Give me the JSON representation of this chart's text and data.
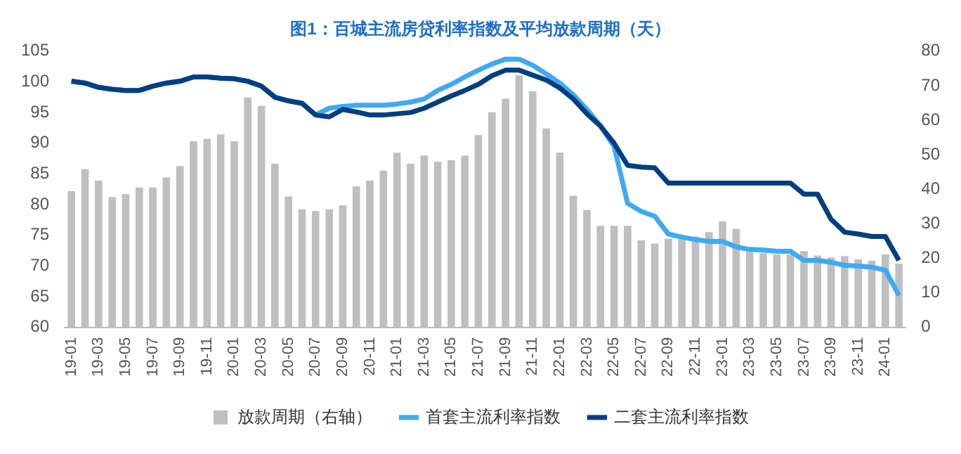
{
  "chart_data": {
    "type": "line",
    "title": "图1：百城主流房贷利率指数及平均放款周期（天）",
    "categories": [
      "19-01",
      null,
      "19-03",
      null,
      "19-05",
      null,
      "19-07",
      null,
      "19-09",
      null,
      "19-11",
      null,
      "20-01",
      null,
      "20-03",
      null,
      "20-05",
      null,
      "20-07",
      null,
      "20-09",
      null,
      "20-11",
      null,
      "21-01",
      null,
      "21-03",
      null,
      "21-05",
      null,
      "21-07",
      null,
      "21-09",
      null,
      "21-11",
      null,
      "22-01",
      null,
      "22-03",
      null,
      "22-05",
      null,
      "22-07",
      null,
      "22-09",
      null,
      "22-11",
      null,
      "23-01",
      null,
      "23-03",
      null,
      "23-05",
      null,
      "23-07",
      null,
      "23-09",
      null,
      "23-11",
      null,
      "24-01",
      null
    ],
    "series": [
      {
        "name": "放款周期（右轴）",
        "type": "bar",
        "axis": "y2",
        "color": "#bfbfbf",
        "values": [
          39.5,
          45.8,
          42.5,
          37.7,
          38.6,
          40.5,
          40.5,
          43.4,
          46.7,
          53.9,
          54.6,
          55.9,
          53.9,
          66.6,
          64.2,
          47.4,
          37.9,
          34.2,
          33.7,
          34.2,
          35.3,
          40.8,
          42.5,
          45.4,
          50.6,
          47.4,
          49.7,
          48.0,
          48.4,
          49.7,
          55.7,
          62.3,
          66.2,
          73.0,
          68.4,
          57.6,
          50.6,
          38.1,
          34.0,
          29.4,
          29.4,
          29.4,
          25.2,
          24.3,
          25.7,
          25.6,
          26.3,
          27.6,
          30.7,
          28.5,
          22.1,
          21.5,
          21.1,
          21.1,
          22.1,
          20.8,
          20.2,
          20.6,
          19.7,
          19.3,
          21.1,
          18.4
        ]
      },
      {
        "name": "首套主流利率指数",
        "color": "#3fa9f5",
        "values": [
          100.1,
          99.8,
          99.1,
          98.8,
          98.6,
          98.6,
          99.3,
          99.8,
          100.1,
          100.8,
          100.8,
          100.6,
          100.5,
          100.1,
          99.3,
          97.5,
          96.9,
          96.5,
          94.6,
          95.7,
          96.0,
          96.2,
          96.2,
          96.2,
          96.4,
          96.7,
          97.2,
          98.6,
          99.6,
          100.8,
          101.9,
          102.9,
          103.7,
          103.7,
          102.7,
          101.3,
          99.8,
          97.9,
          95.5,
          92.8,
          89.5,
          80.2,
          78.9,
          78.1,
          75.2,
          74.7,
          74.3,
          74.0,
          74.0,
          73.1,
          72.7,
          72.6,
          72.4,
          72.4,
          70.9,
          70.9,
          70.6,
          70.1,
          70.0,
          69.8,
          69.3,
          65.2
        ]
      },
      {
        "name": "二套主流利率指数",
        "color": "#003f7f",
        "values": [
          100.1,
          99.8,
          99.1,
          98.8,
          98.6,
          98.6,
          99.3,
          99.8,
          100.1,
          100.8,
          100.8,
          100.6,
          100.5,
          100.1,
          99.3,
          97.5,
          96.9,
          96.5,
          94.6,
          94.3,
          95.5,
          95.1,
          94.6,
          94.6,
          94.8,
          95.0,
          95.7,
          96.7,
          97.7,
          98.6,
          99.6,
          101.0,
          101.9,
          101.9,
          101.1,
          100.3,
          99.0,
          97.2,
          94.8,
          92.8,
          90.0,
          86.4,
          86.1,
          86.0,
          83.5,
          83.5,
          83.5,
          83.5,
          83.5,
          83.5,
          83.5,
          83.5,
          83.5,
          83.5,
          81.7,
          81.7,
          77.6,
          75.5,
          75.2,
          74.8,
          74.8,
          70.9
        ]
      }
    ],
    "ylim": [
      60,
      105
    ],
    "yticks": [
      60,
      65,
      70,
      75,
      80,
      85,
      90,
      95,
      100,
      105
    ],
    "y2lim": [
      0,
      80
    ],
    "y2ticks": [
      0,
      10,
      20,
      30,
      40,
      50,
      60,
      70,
      80
    ],
    "legend": "bottom",
    "marker": "none",
    "line_style": "solid"
  }
}
